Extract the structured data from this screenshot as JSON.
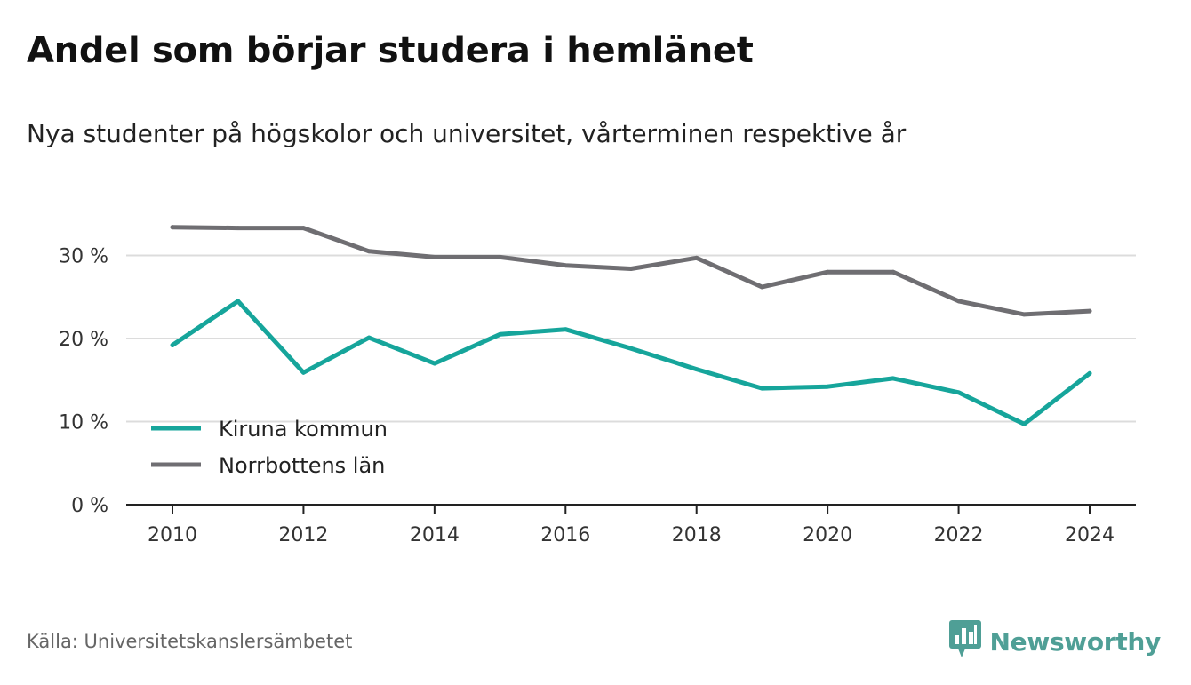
{
  "title": "Andel som börjar studera i hemlänet",
  "subtitle": "Nya studenter på högskolor och universitet, vårterminen respektive år",
  "source": "Källa: Universitetskanslersämbetet",
  "brand": {
    "name": "Newsworthy",
    "color": "#4f9f96",
    "icon": "bar-chart-badge-icon"
  },
  "chart_data": {
    "type": "line",
    "x": [
      2010,
      2011,
      2012,
      2013,
      2014,
      2015,
      2016,
      2017,
      2018,
      2019,
      2020,
      2021,
      2022,
      2023,
      2024
    ],
    "x_ticks": [
      "2010",
      "2012",
      "2014",
      "2016",
      "2018",
      "2020",
      "2022",
      "2024"
    ],
    "y_ticks": [
      "0 %",
      "10 %",
      "20 %",
      "30 %"
    ],
    "ylim": [
      0,
      35
    ],
    "grid": true,
    "legend_position": "bottom-left",
    "series": [
      {
        "name": "Kiruna kommun",
        "color": "#16a59b",
        "values": [
          19.2,
          24.5,
          15.9,
          20.1,
          17.0,
          20.5,
          21.1,
          18.8,
          16.3,
          14.0,
          14.2,
          15.2,
          13.5,
          9.7,
          15.8
        ]
      },
      {
        "name": "Norrbottens län",
        "color": "#6f6e72",
        "values": [
          33.4,
          33.3,
          33.3,
          30.5,
          29.8,
          29.8,
          28.8,
          28.4,
          29.7,
          26.2,
          28.0,
          28.0,
          24.5,
          22.9,
          23.3
        ]
      }
    ]
  }
}
